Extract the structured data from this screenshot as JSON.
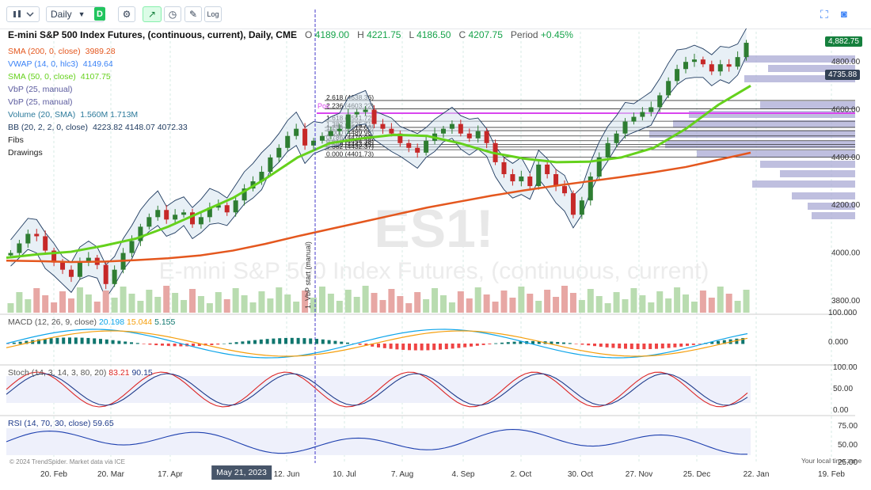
{
  "toolbar": {
    "interval": "Daily",
    "interval_badge": "D",
    "log_label": "Log"
  },
  "header": {
    "title": "E-mini S&P 500 Index Futures, (continuous, current), Daily, CME",
    "o_label": "O",
    "o_value": "4189.00",
    "h_label": "H",
    "h_value": "4221.75",
    "l_label": "L",
    "l_value": "4186.50",
    "c_label": "C",
    "c_value": "4207.75",
    "period_label": "Period",
    "period_value": "+0.45%"
  },
  "legend": [
    {
      "name": "SMA (200, 0, close)",
      "values": "3989.28",
      "color": "#e4571e"
    },
    {
      "name": "VWAP (14, 0, hlc3)",
      "values": "4149.64",
      "color": "#3b82f6"
    },
    {
      "name": "SMA (50, 0, close)",
      "values": "4107.75",
      "color": "#65d11c"
    },
    {
      "name": "VbP (25, manual)",
      "values": "",
      "color": "#5b5b9e"
    },
    {
      "name": "VbP (25, manual)",
      "values": "",
      "color": "#5b5b9e"
    },
    {
      "name": "Volume (20, SMA)",
      "values": "1.560M  1.713M",
      "color": "#2c7a9b"
    },
    {
      "name": "BB (20, 2, 2, 0, close)",
      "values": "4223.82  4148.07  4072.33",
      "color": "#1e3a5f"
    },
    {
      "name": "Fibs",
      "values": "",
      "color": "#222222"
    },
    {
      "name": "Drawings",
      "values": "",
      "color": "#222222"
    }
  ],
  "watermark": {
    "symbol": "ES1!",
    "name": "E-mini S&P 500 Index Futures, (continuous, current)"
  },
  "price_tags": {
    "last": "4,882.75",
    "bb": "4735.88"
  },
  "fibs": {
    "labels": [
      "2.618 (4638.36)",
      "2.236 (4603.22)",
      "1.618 (4551.72)",
      "1.382 (4525.71)",
      "1.236 (4512.08)",
      "1.000 (4489.98)",
      "0.786 (4470.03)",
      "0.618 (4454.38)",
      "0.500 (4443.45)",
      "0.382 (4432.37)",
      "0.000 (4401.73)"
    ],
    "poc_label": "Poc",
    "vbp_start_label": "1. VbP start (manual)"
  },
  "macd": {
    "name": "MACD (12, 26, 9, close)",
    "v1": "20.198",
    "v2": "15.044",
    "v3": "5.155"
  },
  "stoch": {
    "name": "Stoch (14, 3, 14, 3, 80, 20)",
    "v1": "83.21",
    "v2": "90.15"
  },
  "rsi": {
    "name": "RSI (14, 70, 30, close)",
    "v1": "59.65"
  },
  "footer": {
    "copyright": "© 2024 TrendSpider. Market data via ICE",
    "local_time": "Your local time zone"
  },
  "cursor_date": "May 21, 2023",
  "chart_data": {
    "type": "candlestick",
    "title": "E-mini S&P 500 Index Futures, (continuous, current), Daily, CME",
    "x_tick_labels": [
      "20. Feb",
      "20. Mar",
      "17. Apr",
      "12. Jun",
      "10. Jul",
      "7. Aug",
      "4. Sep",
      "2. Oct",
      "30. Oct",
      "27. Nov",
      "25. Dec",
      "22. Jan",
      "19. Feb"
    ],
    "price_axis": {
      "labels": [
        "4800.00",
        "4600.00",
        "4400.00",
        "4200.00",
        "4000.00",
        "3800.00"
      ],
      "ylim": [
        3760,
        4900
      ]
    },
    "macd_axis": {
      "labels": [
        "100.000",
        "0.000"
      ]
    },
    "stoch_axis": {
      "labels": [
        "100.00",
        "50.00",
        "0.00"
      ]
    },
    "rsi_axis": {
      "labels": [
        "75.00",
        "50.00",
        "25.00"
      ]
    },
    "close_approx": [
      4000,
      4040,
      4080,
      4070,
      4010,
      3960,
      3930,
      3900,
      3960,
      3980,
      3950,
      3870,
      3930,
      4000,
      4050,
      4110,
      4150,
      4180,
      4140,
      4160,
      4170,
      4120,
      4150,
      4190,
      4200,
      4170,
      4220,
      4270,
      4300,
      4340,
      4400,
      4440,
      4490,
      4520,
      4450,
      4470,
      4490,
      4510,
      4520,
      4580,
      4590,
      4600,
      4540,
      4520,
      4500,
      4460,
      4440,
      4420,
      4470,
      4500,
      4520,
      4540,
      4500,
      4480,
      4510,
      4460,
      4380,
      4330,
      4300,
      4320,
      4280,
      4370,
      4330,
      4280,
      4250,
      4160,
      4220,
      4320,
      4400,
      4460,
      4500,
      4550,
      4570,
      4590,
      4610,
      4660,
      4720,
      4770,
      4800,
      4810,
      4790,
      4760,
      4790,
      4780,
      4820,
      4880
    ],
    "sma200": [
      3968,
      3966,
      3962,
      3964,
      3970,
      3978,
      3990,
      4010,
      4038,
      4070,
      4100,
      4130,
      4160,
      4190,
      4215,
      4240,
      4262,
      4282,
      4300,
      4318,
      4338,
      4360,
      4390,
      4420
    ],
    "sma50": [
      3980,
      3995,
      4005,
      4030,
      4060,
      4110,
      4170,
      4230,
      4310,
      4400,
      4460,
      4480,
      4495,
      4490,
      4460,
      4420,
      4395,
      4380,
      4382,
      4400,
      4440,
      4520,
      4620,
      4700
    ],
    "fib_levels": [
      4638.36,
      4603.22,
      4551.72,
      4525.71,
      4512.08,
      4489.98,
      4470.03,
      4454.38,
      4443.45,
      4432.37,
      4401.73
    ],
    "macd_value": 20.198,
    "macd_signal": 15.044,
    "macd_hist": 5.155,
    "stoch_k": 83.21,
    "stoch_d": 90.15,
    "rsi": 59.65
  }
}
